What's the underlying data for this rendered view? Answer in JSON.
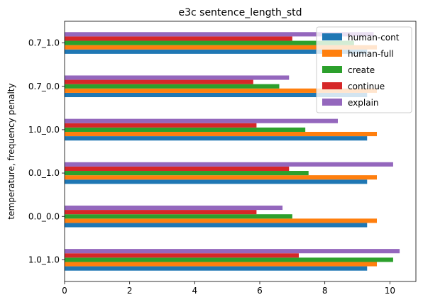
{
  "chart_data": {
    "type": "bar",
    "orientation": "horizontal",
    "title": "e3c sentence_length_std",
    "xlabel": "",
    "ylabel": "temperature, frequency penalty",
    "xlim": [
      0,
      10.8
    ],
    "xticks": [
      0,
      2,
      4,
      6,
      8,
      10
    ],
    "categories": [
      "1.0_1.0",
      "0.0_0.0",
      "0.0_1.0",
      "1.0_0.0",
      "0.7_0.0",
      "0.7_1.0"
    ],
    "series": [
      {
        "name": "human-cont",
        "color": "#1f77b4",
        "values": [
          9.3,
          9.3,
          9.3,
          9.3,
          9.3,
          9.3
        ]
      },
      {
        "name": "human-full",
        "color": "#ff7f0e",
        "values": [
          9.6,
          9.6,
          9.6,
          9.6,
          9.6,
          9.6
        ]
      },
      {
        "name": "create",
        "color": "#2ca02c",
        "values": [
          10.1,
          7.0,
          7.5,
          7.4,
          6.6,
          8.9
        ]
      },
      {
        "name": "continue",
        "color": "#d62728",
        "values": [
          7.2,
          5.9,
          6.9,
          5.9,
          5.8,
          7.0
        ]
      },
      {
        "name": "explain",
        "color": "#9467bd",
        "values": [
          10.3,
          6.7,
          10.1,
          8.4,
          6.9,
          9.5
        ]
      }
    ],
    "legend_position": "top-right",
    "grid": false
  }
}
